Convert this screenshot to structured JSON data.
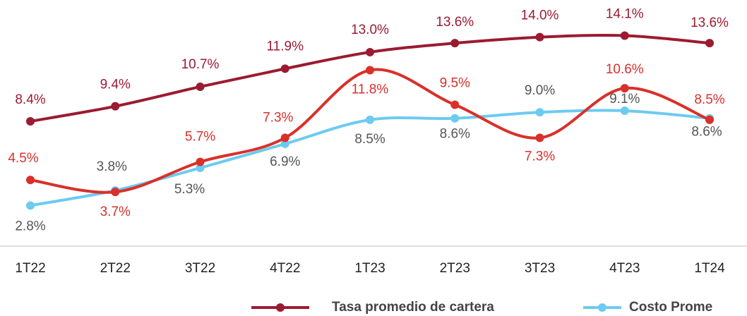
{
  "chart_data": {
    "type": "line",
    "categories": [
      "1T22",
      "2T22",
      "3T22",
      "4T22",
      "1T23",
      "2T23",
      "3T23",
      "4T23",
      "1T24"
    ],
    "ylim": [
      0,
      16
    ],
    "series": [
      {
        "name": "Tasa promedio de cartera",
        "color": "#9b1b30",
        "values": [
          8.4,
          9.4,
          10.7,
          11.9,
          13.0,
          13.6,
          14.0,
          14.1,
          13.6
        ],
        "value_labels": [
          "8.4%",
          "9.4%",
          "10.7%",
          "11.9%",
          "13.0%",
          "13.6%",
          "14.0%",
          "14.1%",
          "13.6%"
        ]
      },
      {
        "color": "#d9302a",
        "values": [
          4.5,
          3.7,
          5.7,
          7.3,
          11.8,
          9.5,
          7.3,
          10.6,
          8.5
        ],
        "value_labels": [
          "4.5%",
          "3.7%",
          "5.7%",
          "7.3%",
          "11.8%",
          "9.5%",
          "7.3%",
          "10.6%",
          "8.5%"
        ]
      },
      {
        "name": "Costo Prome",
        "color": "#6ccbf0",
        "values": [
          2.8,
          3.8,
          5.3,
          6.9,
          8.5,
          8.6,
          9.0,
          9.1,
          8.6
        ],
        "value_labels": [
          "2.8%",
          "3.8%",
          "5.3%",
          "6.9%",
          "8.5%",
          "8.6%",
          "9.0%",
          "9.1%",
          "8.6%"
        ]
      }
    ]
  }
}
